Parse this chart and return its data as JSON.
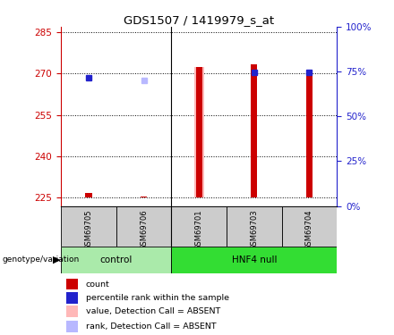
{
  "title": "GDS1507 / 1419979_s_at",
  "samples": [
    "GSM69705",
    "GSM69706",
    "GSM69701",
    "GSM69703",
    "GSM69704"
  ],
  "ylim": [
    222,
    287
  ],
  "yticks": [
    225,
    240,
    255,
    270,
    285
  ],
  "right_yticks": [
    0,
    25,
    50,
    75,
    100
  ],
  "bar_bottom": 225,
  "bars": {
    "count_red": [
      226.8,
      225.4,
      272.5,
      273.5,
      271.5
    ],
    "rank_blue": [
      268.5,
      null,
      null,
      270.5,
      270.5
    ],
    "value_pink": [
      null,
      null,
      272.5,
      null,
      null
    ],
    "rank_pink": [
      null,
      267.5,
      null,
      null,
      null
    ]
  },
  "red_bar_width": 0.12,
  "pink_wide_bar_width": 0.18,
  "square_size": 4,
  "colors": {
    "count_red": "#cc0000",
    "rank_blue": "#2222cc",
    "value_pink": "#ffb8b8",
    "rank_pink": "#b8b8ff",
    "control_bg": "#aaeaaa",
    "hnf4_bg": "#33dd33",
    "sample_bg": "#cccccc",
    "axis_left": "#cc0000",
    "axis_right": "#2222cc"
  },
  "control_indices": [
    0,
    1
  ],
  "hnf4_indices": [
    2,
    3,
    4
  ],
  "legend": [
    {
      "label": "count",
      "color": "#cc0000"
    },
    {
      "label": "percentile rank within the sample",
      "color": "#2222cc"
    },
    {
      "label": "value, Detection Call = ABSENT",
      "color": "#ffb8b8"
    },
    {
      "label": "rank, Detection Call = ABSENT",
      "color": "#b8b8ff"
    }
  ]
}
